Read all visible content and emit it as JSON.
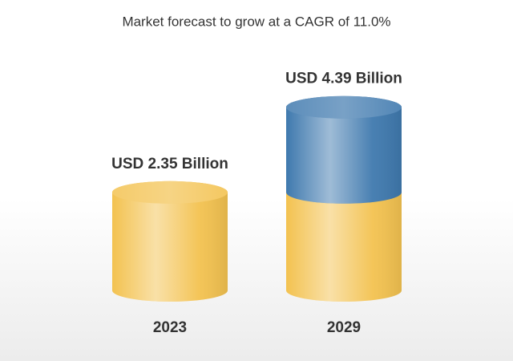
{
  "chart_data": {
    "type": "bar",
    "title": "Market forecast to grow at a CAGR of 11.0%",
    "categories": [
      "2023",
      "2029"
    ],
    "values": [
      2.35,
      4.39
    ],
    "value_labels": [
      "USD 2.35 Billion",
      "USD 4.39 Billion"
    ],
    "color": "#f3c250",
    "growth_color": "#3f79ae"
  }
}
